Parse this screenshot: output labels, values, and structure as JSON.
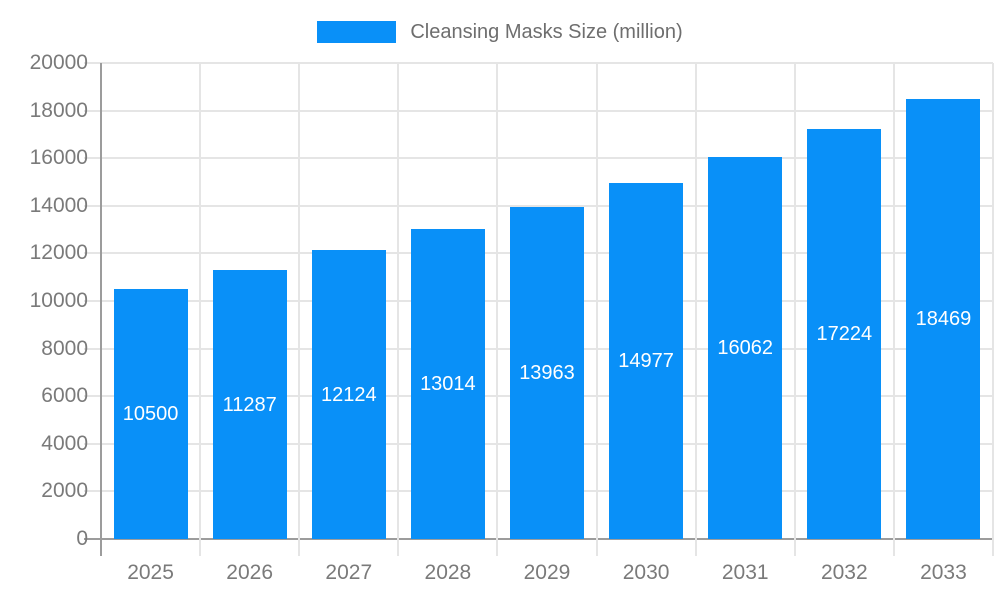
{
  "chart_data": {
    "type": "bar",
    "title": "Cleansing Masks Size (million)",
    "legend": [
      "Cleansing Masks Size (million)"
    ],
    "legend_position": "top",
    "categories": [
      "2025",
      "2026",
      "2027",
      "2028",
      "2029",
      "2030",
      "2031",
      "2032",
      "2033"
    ],
    "series": [
      {
        "name": "Cleansing Masks Size (million)",
        "values": [
          10500,
          11287,
          12124,
          13014,
          13963,
          14977,
          16062,
          17224,
          18469
        ]
      }
    ],
    "data_labels": [
      "10500",
      "11287",
      "12124",
      "13014",
      "13963",
      "14977",
      "16062",
      "17224",
      "18469"
    ],
    "xlabel": "",
    "ylabel": "",
    "ylim": [
      0,
      20000
    ],
    "ytick_step": 2000,
    "ytick_labels": [
      "0",
      "2000",
      "4000",
      "6000",
      "8000",
      "10000",
      "12000",
      "14000",
      "16000",
      "18000",
      "20000"
    ],
    "grid": true,
    "colors": {
      "bar": "#0990f8",
      "bar_value_text": "#ffffff",
      "axis_line": "#9c9c9c",
      "grid_line": "#e5e5e5",
      "axis_text": "#7a7a7a",
      "legend_text": "#6e6e6e",
      "background": "#ffffff"
    }
  }
}
